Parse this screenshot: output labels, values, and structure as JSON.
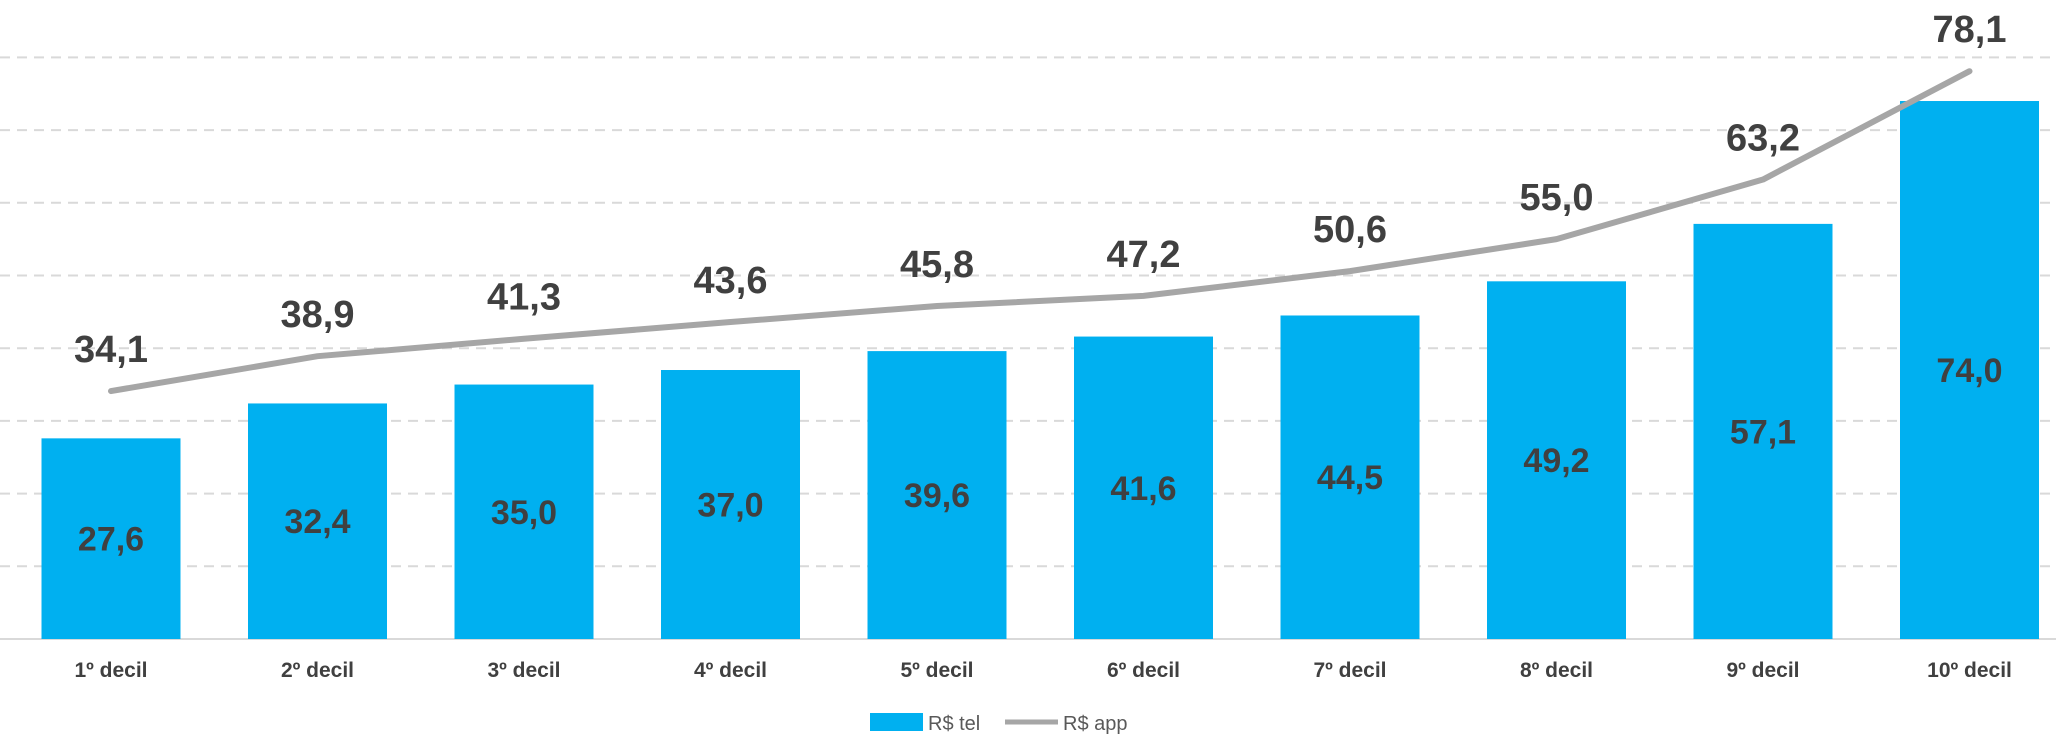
{
  "chart_data": {
    "type": "bar",
    "categories": [
      "1º decil",
      "2º decil",
      "3º decil",
      "4º decil",
      "5º decil",
      "6º decil",
      "7º decil",
      "8º decil",
      "9º decil",
      "10º decil"
    ],
    "series": [
      {
        "name": "R$ tel",
        "type": "bar",
        "color": "#00B0F0",
        "values": [
          27.6,
          32.4,
          35.0,
          37.0,
          39.6,
          41.6,
          44.5,
          49.2,
          57.1,
          74.0
        ],
        "labels": [
          "27,6",
          "32,4",
          "35,0",
          "37,0",
          "39,6",
          "41,6",
          "44,5",
          "49,2",
          "57,1",
          "74,0"
        ]
      },
      {
        "name": "R$ app",
        "type": "line",
        "color": "#A6A6A6",
        "values": [
          34.1,
          38.9,
          41.3,
          43.6,
          45.8,
          47.2,
          50.6,
          55.0,
          63.2,
          78.1
        ],
        "labels": [
          "34,1",
          "38,9",
          "41,3",
          "43,6",
          "45,8",
          "47,2",
          "50,6",
          "55,0",
          "63,2",
          "78,1"
        ]
      }
    ],
    "ylim": [
      0,
      80
    ],
    "grid": true,
    "legend": "bottom-center",
    "title": "",
    "xlabel": "",
    "ylabel": ""
  }
}
